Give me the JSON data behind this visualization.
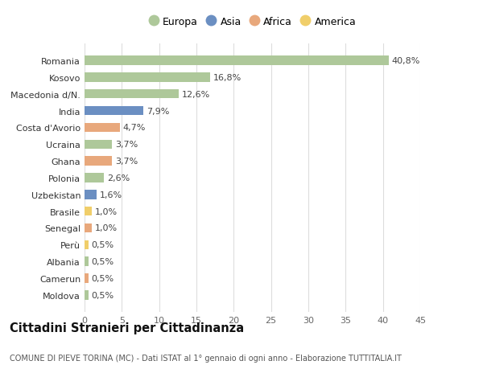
{
  "categories": [
    "Romania",
    "Kosovo",
    "Macedonia d/N.",
    "India",
    "Costa d'Avorio",
    "Ucraina",
    "Ghana",
    "Polonia",
    "Uzbekistan",
    "Brasile",
    "Senegal",
    "Perù",
    "Albania",
    "Camerun",
    "Moldova"
  ],
  "values": [
    40.8,
    16.8,
    12.6,
    7.9,
    4.7,
    3.7,
    3.7,
    2.6,
    1.6,
    1.0,
    1.0,
    0.5,
    0.5,
    0.5,
    0.5
  ],
  "labels": [
    "40,8%",
    "16,8%",
    "12,6%",
    "7,9%",
    "4,7%",
    "3,7%",
    "3,7%",
    "2,6%",
    "1,6%",
    "1,0%",
    "1,0%",
    "0,5%",
    "0,5%",
    "0,5%",
    "0,5%"
  ],
  "continents": [
    "Europa",
    "Europa",
    "Europa",
    "Asia",
    "Africa",
    "Europa",
    "Africa",
    "Europa",
    "Asia",
    "America",
    "Africa",
    "America",
    "Europa",
    "Africa",
    "Europa"
  ],
  "continent_colors": {
    "Europa": "#aec89a",
    "Asia": "#6b8fc2",
    "Africa": "#e8a87c",
    "America": "#f0ce6a"
  },
  "legend_order": [
    "Europa",
    "Asia",
    "Africa",
    "America"
  ],
  "title": "Cittadini Stranieri per Cittadinanza",
  "subtitle": "COMUNE DI PIEVE TORINA (MC) - Dati ISTAT al 1° gennaio di ogni anno - Elaborazione TUTTITALIA.IT",
  "xlim": [
    0,
    45
  ],
  "xticks": [
    0,
    5,
    10,
    15,
    20,
    25,
    30,
    35,
    40,
    45
  ],
  "background_color": "#ffffff",
  "grid_color": "#dddddd",
  "bar_height": 0.55,
  "label_fontsize": 8,
  "tick_fontsize": 8,
  "title_fontsize": 10.5,
  "subtitle_fontsize": 7,
  "legend_fontsize": 9
}
